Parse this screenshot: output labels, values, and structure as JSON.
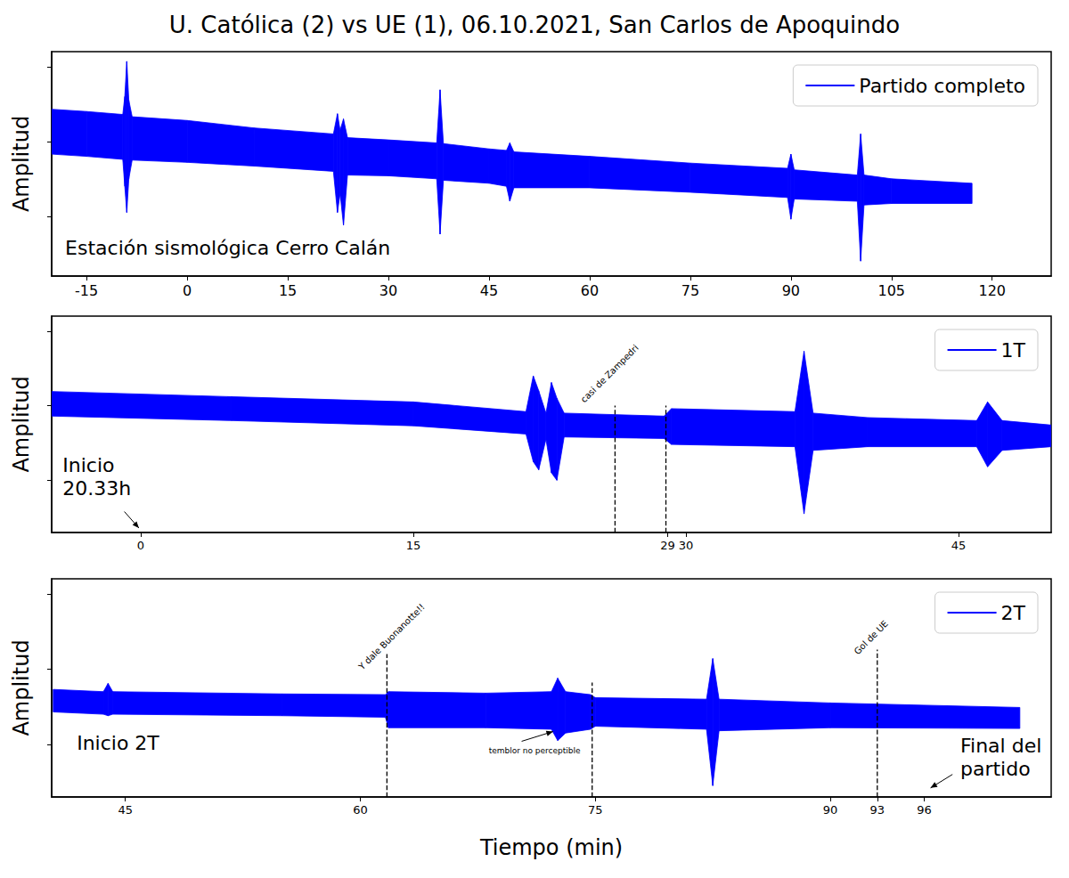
{
  "chart_data": [
    {
      "type": "area",
      "title": "U. Católica (2) vs UE (1), 06.10.2021, San Carlos de Apoquindo",
      "y_label": "Amplitud",
      "xlim": [
        -20.2,
        128.8
      ],
      "xticks": [
        -15,
        0,
        15,
        30,
        45,
        60,
        75,
        90,
        105,
        120
      ],
      "ylim": [
        -1.8,
        1.2
      ],
      "yticks": [
        -1,
        0,
        1
      ],
      "tick_labels": "x",
      "grid": false,
      "legend": "upper right",
      "series": [
        {
          "name": "Partido completo",
          "color": "#0000ff",
          "x": [
            -20.2,
            -15,
            -9.6,
            -9.3,
            -9.0,
            -8.7,
            -8.2,
            0,
            10,
            21.8,
            22.4,
            22.8,
            23.3,
            23.9,
            30,
            37.2,
            37.7,
            38.2,
            45,
            47.6,
            48.1,
            48.7,
            60,
            75,
            89.5,
            90.0,
            90.5,
            99.9,
            100.4,
            100.9,
            105,
            117
          ],
          "upper": [
            0.43,
            0.4,
            0.36,
            0.6,
            1.07,
            0.55,
            0.33,
            0.28,
            0.18,
            0.1,
            0.37,
            0.15,
            0.3,
            0.05,
            0.02,
            -0.02,
            0.69,
            -0.03,
            -0.1,
            -0.12,
            -0.02,
            -0.14,
            -0.2,
            -0.29,
            -0.36,
            -0.17,
            -0.38,
            -0.45,
            0.1,
            -0.45,
            -0.5,
            -0.56
          ],
          "lower": [
            -0.17,
            -0.2,
            -0.24,
            -0.6,
            -0.95,
            -0.5,
            -0.25,
            -0.28,
            -0.33,
            -0.4,
            -0.95,
            -0.7,
            -1.12,
            -0.45,
            -0.46,
            -0.5,
            -1.24,
            -0.52,
            -0.56,
            -0.6,
            -0.8,
            -0.62,
            -0.62,
            -0.68,
            -0.75,
            -1.04,
            -0.77,
            -0.8,
            -1.6,
            -0.85,
            -0.83,
            -0.83
          ]
        }
      ],
      "notes": [
        {
          "text": "Estación sismológica Cerro Calán",
          "x": -18.2,
          "y": -1.27
        }
      ]
    },
    {
      "type": "area",
      "y_label": "Amplitud",
      "xlim": [
        -4.9,
        50.1
      ],
      "xticks": [
        0,
        15,
        29,
        30,
        45
      ],
      "ylim": [
        -1.7,
        1.2
      ],
      "yticks": [
        -1,
        0,
        1
      ],
      "tick_labels": "x",
      "grid": false,
      "legend": "upper right",
      "series": [
        {
          "name": "1T",
          "color": "#0000ff",
          "x": [
            -4.9,
            5,
            15,
            21.2,
            21.6,
            21.9,
            22.3,
            22.6,
            22.9,
            23.3,
            28.8,
            29.2,
            36.0,
            36.5,
            37.0,
            40,
            46.0,
            46.6,
            47.4,
            50.1
          ],
          "upper": [
            0.19,
            0.12,
            0.05,
            -0.08,
            0.4,
            0.2,
            -0.1,
            0.31,
            0.1,
            -0.1,
            -0.14,
            -0.04,
            -0.08,
            0.73,
            -0.1,
            -0.16,
            -0.2,
            0.05,
            -0.2,
            -0.26
          ],
          "lower": [
            -0.14,
            -0.2,
            -0.27,
            -0.38,
            -0.75,
            -0.86,
            -0.45,
            -0.9,
            -1.0,
            -0.42,
            -0.44,
            -0.52,
            -0.55,
            -1.45,
            -0.6,
            -0.55,
            -0.55,
            -0.82,
            -0.6,
            -0.55
          ]
        }
      ],
      "annotations": [
        {
          "text": "casi de Zampedri",
          "x": 26.1,
          "y": 0,
          "text_x": 25.8,
          "text_y": 0.43
        }
      ],
      "vlines": [
        {
          "x": 28.9,
          "y": 0
        }
      ],
      "notes": [
        {
          "text": "Inicio\n20.33h",
          "x": -4.3,
          "y": -0.64,
          "arrow": [
            [
              -0.9,
              -1.42
            ],
            [
              -0.1,
              -1.64
            ]
          ]
        }
      ]
    },
    {
      "type": "area",
      "y_label": "Amplitud",
      "x_label": "Tiempo (min)",
      "xlim": [
        40.3,
        104.1
      ],
      "xticks": [
        45,
        60,
        75,
        90,
        93,
        96
      ],
      "ylim": [
        -1.7,
        1.2
      ],
      "yticks": [
        -1,
        0,
        1
      ],
      "tick_labels": "x",
      "grid": false,
      "legend": "upper right",
      "series": [
        {
          "name": "2T",
          "color": "#0000ff",
          "x": [
            40.4,
            43.6,
            43.9,
            44.2,
            55,
            61.6,
            61.8,
            68,
            72.2,
            72.6,
            73.1,
            74.7,
            75,
            82.1,
            82.5,
            82.9,
            90,
            102.1
          ],
          "upper": [
            -0.27,
            -0.3,
            -0.19,
            -0.3,
            -0.33,
            -0.34,
            -0.3,
            -0.32,
            -0.3,
            -0.12,
            -0.3,
            -0.34,
            -0.38,
            -0.4,
            0.14,
            -0.4,
            -0.45,
            -0.51
          ],
          "lower": [
            -0.57,
            -0.6,
            -0.62,
            -0.6,
            -0.62,
            -0.64,
            -0.78,
            -0.78,
            -0.8,
            -0.95,
            -0.85,
            -0.8,
            -0.76,
            -0.8,
            -1.55,
            -0.82,
            -0.78,
            -0.79
          ]
        }
      ],
      "annotations": [
        {
          "text": "Y dale Buonanotte!!",
          "x": 61.7,
          "y": 0.2,
          "text_x": 62.0,
          "text_y": 0.43
        },
        {
          "text": "Gol de UE",
          "x": 93,
          "y": 0.26,
          "text_x": 92.6,
          "text_y": 0.42
        }
      ],
      "vlines": [
        {
          "x": 74.8,
          "y": -0.18
        }
      ],
      "notes": [
        {
          "text": "Inicio 2T",
          "x": 41.9,
          "y": -0.83
        },
        {
          "text": "Final del\npartido",
          "x": 98.3,
          "y": -0.87,
          "arrow": [
            [
              97.8,
              -1.4
            ],
            [
              96.4,
              -1.58
            ]
          ]
        }
      ],
      "small_notes": [
        {
          "text": "temblor no perceptible",
          "x": 68.2,
          "y": -1.02,
          "arrow": [
            [
              70.3,
              -0.96
            ],
            [
              72.3,
              -0.83
            ]
          ]
        }
      ]
    }
  ]
}
